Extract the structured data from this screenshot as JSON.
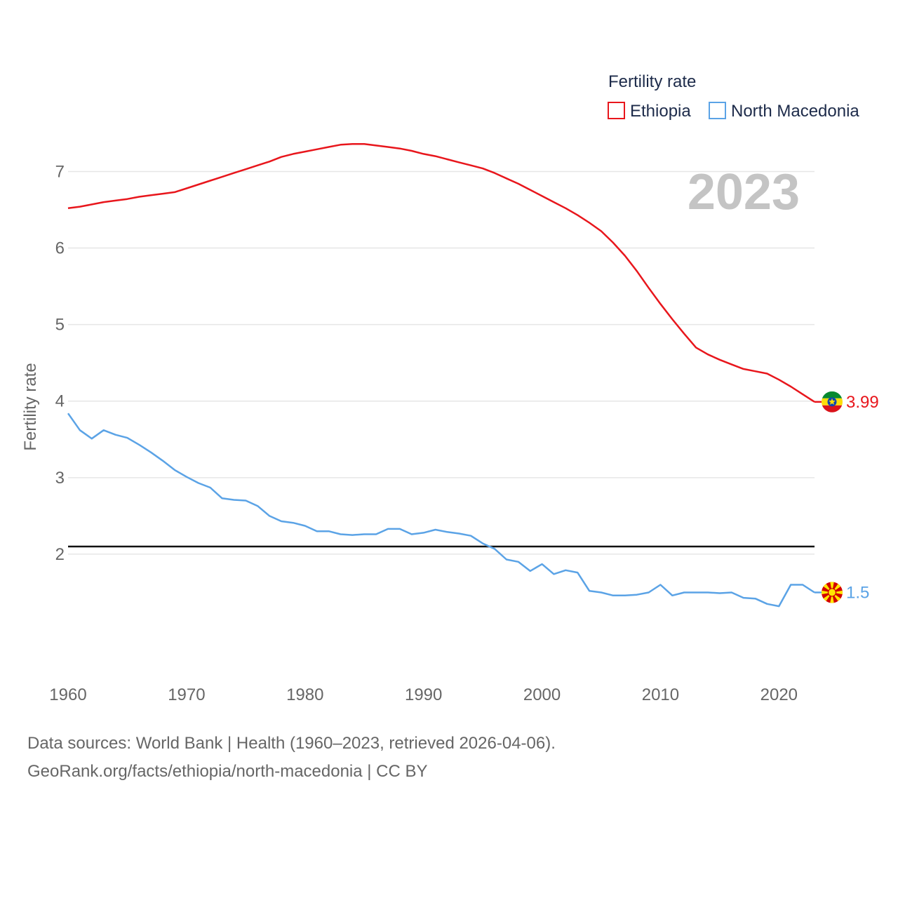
{
  "chart_data": {
    "type": "line",
    "legend_title": "Fertility rate",
    "ylabel": "Fertility rate",
    "year_label": "2023",
    "x": [
      1960,
      1961,
      1962,
      1963,
      1964,
      1965,
      1966,
      1967,
      1968,
      1969,
      1970,
      1971,
      1972,
      1973,
      1974,
      1975,
      1976,
      1977,
      1978,
      1979,
      1980,
      1981,
      1982,
      1983,
      1984,
      1985,
      1986,
      1987,
      1988,
      1989,
      1990,
      1991,
      1992,
      1993,
      1994,
      1995,
      1996,
      1997,
      1998,
      1999,
      2000,
      2001,
      2002,
      2003,
      2004,
      2005,
      2006,
      2007,
      2008,
      2009,
      2010,
      2011,
      2012,
      2013,
      2014,
      2015,
      2016,
      2017,
      2018,
      2019,
      2020,
      2021,
      2022,
      2023
    ],
    "xlim": [
      1960,
      2023
    ],
    "ylim": [
      1.0,
      7.6
    ],
    "xticks": [
      1960,
      1970,
      1980,
      1990,
      2000,
      2010,
      2020
    ],
    "yticks": [
      2,
      3,
      4,
      5,
      6,
      7
    ],
    "reference_line": 2.1,
    "series": [
      {
        "name": "Ethiopia",
        "color": "#e8161c",
        "end_label": "3.99",
        "values": [
          6.52,
          6.54,
          6.57,
          6.6,
          6.62,
          6.64,
          6.67,
          6.69,
          6.71,
          6.73,
          6.78,
          6.83,
          6.88,
          6.93,
          6.98,
          7.03,
          7.08,
          7.13,
          7.19,
          7.23,
          7.26,
          7.29,
          7.32,
          7.35,
          7.36,
          7.36,
          7.34,
          7.32,
          7.3,
          7.27,
          7.23,
          7.2,
          7.16,
          7.12,
          7.08,
          7.04,
          6.98,
          6.91,
          6.84,
          6.76,
          6.68,
          6.6,
          6.52,
          6.43,
          6.33,
          6.22,
          6.07,
          5.9,
          5.7,
          5.48,
          5.27,
          5.07,
          4.88,
          4.7,
          4.61,
          4.54,
          4.48,
          4.42,
          4.39,
          4.36,
          4.28,
          4.19,
          4.09,
          3.99
        ]
      },
      {
        "name": "North Macedonia",
        "color": "#5ba3e6",
        "end_label": "1.5",
        "values": [
          3.84,
          3.62,
          3.51,
          3.62,
          3.56,
          3.52,
          3.43,
          3.33,
          3.22,
          3.1,
          3.01,
          2.93,
          2.87,
          2.73,
          2.71,
          2.7,
          2.63,
          2.5,
          2.43,
          2.41,
          2.37,
          2.3,
          2.3,
          2.26,
          2.25,
          2.26,
          2.26,
          2.33,
          2.33,
          2.26,
          2.28,
          2.32,
          2.29,
          2.27,
          2.24,
          2.14,
          2.07,
          1.93,
          1.9,
          1.78,
          1.87,
          1.74,
          1.79,
          1.76,
          1.52,
          1.5,
          1.46,
          1.46,
          1.47,
          1.5,
          1.6,
          1.46,
          1.5,
          1.5,
          1.5,
          1.49,
          1.5,
          1.43,
          1.42,
          1.35,
          1.32,
          1.6,
          1.6,
          1.5
        ]
      }
    ]
  },
  "footer": {
    "line1": "Data sources: World Bank | Health (1960–2023, retrieved 2026-04-06).",
    "line2": "GeoRank.org/facts/ethiopia/north-macedonia | CC BY"
  }
}
